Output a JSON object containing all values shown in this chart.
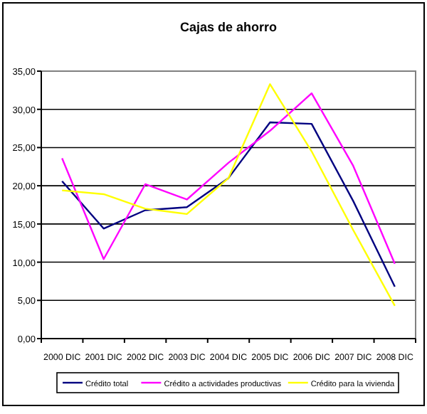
{
  "chart_data": {
    "type": "line",
    "title": "Cajas de ahorro",
    "categories": [
      "2000 DIC",
      "2001 DIC",
      "2002 DIC",
      "2003 DIC",
      "2004 DIC",
      "2005 DIC",
      "2006 DIC",
      "2007 DIC",
      "2008 DIC"
    ],
    "series": [
      {
        "name": "Crédito total",
        "color": "#000080",
        "values": [
          20.6,
          14.4,
          16.8,
          17.2,
          21.0,
          28.3,
          28.1,
          18.0,
          6.8
        ]
      },
      {
        "name": "Crédito a actividades productivas",
        "color": "#ff00ff",
        "values": [
          23.6,
          10.4,
          20.2,
          18.2,
          23.0,
          27.2,
          32.1,
          22.6,
          9.8
        ]
      },
      {
        "name": "Crédito para la vivienda",
        "color": "#ffff00",
        "values": [
          19.4,
          18.9,
          17.0,
          16.3,
          21.0,
          33.3,
          24.5,
          14.2,
          4.3
        ]
      }
    ],
    "ylim": [
      0,
      35
    ],
    "yticks": [
      {
        "value": 0,
        "label": "0,00"
      },
      {
        "value": 5,
        "label": "5,00"
      },
      {
        "value": 10,
        "label": "10,00"
      },
      {
        "value": 15,
        "label": "15,00"
      },
      {
        "value": 20,
        "label": "20,00"
      },
      {
        "value": 25,
        "label": "25,00"
      },
      {
        "value": 30,
        "label": "30,00"
      },
      {
        "value": 35,
        "label": "35,00"
      }
    ],
    "grid": "y",
    "legend": "bottom",
    "marker": "none",
    "line_style": "solid"
  }
}
